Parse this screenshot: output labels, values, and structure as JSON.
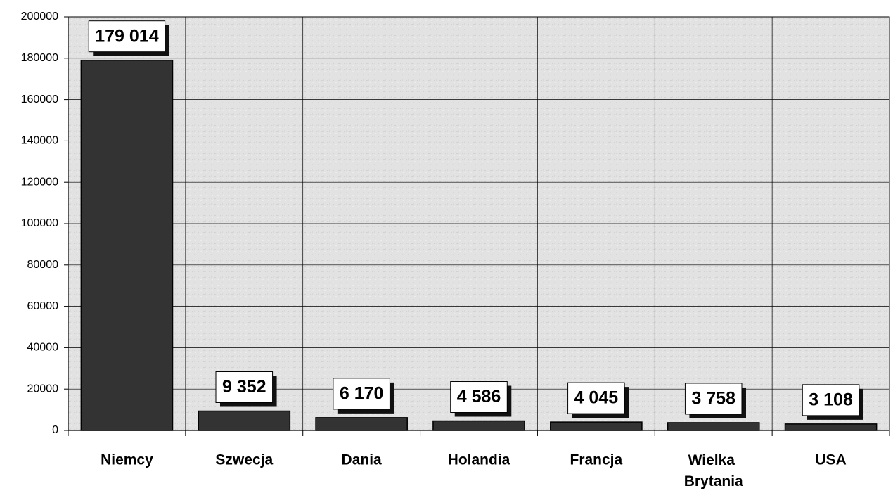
{
  "chart_data": {
    "type": "bar",
    "categories": [
      "Niemcy",
      "Szwecja",
      "Dania",
      "Holandia",
      "Francja",
      "Wielka Brytania",
      "USA"
    ],
    "values": [
      179014,
      9352,
      6170,
      4586,
      4045,
      3758,
      3108
    ],
    "value_labels": [
      "179 014",
      "9 352",
      "6 170",
      "4 586",
      "4 045",
      "3 758",
      "3 108"
    ],
    "color": "#333333",
    "ylim": [
      0,
      200000
    ],
    "yticks": [
      0,
      20000,
      40000,
      60000,
      80000,
      100000,
      120000,
      140000,
      160000,
      180000,
      200000
    ],
    "grid": true
  }
}
